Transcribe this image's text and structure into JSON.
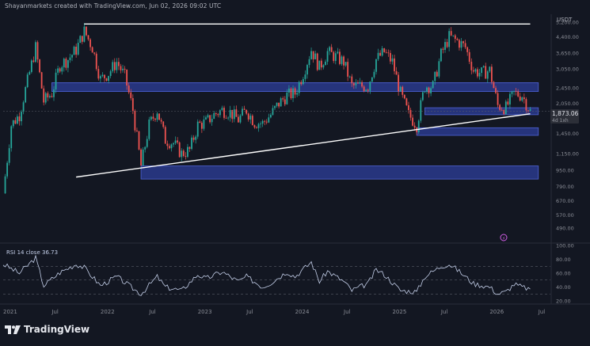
{
  "header": {
    "caption": "Shayanmarkets created with TradingView.com, Jun 02, 2026 09:02 UTC"
  },
  "brand": {
    "name": "TradingView",
    "icon": "tradingview-logo-icon"
  },
  "colors": {
    "background": "#131722",
    "bull": "#26a69a",
    "bear": "#ef5350",
    "zone_fill": "#2a3a8c",
    "zone_stroke": "#4f63d6",
    "trendline": "#ffffff",
    "rsi_line": "#c3cee8",
    "price_badge": "#2c2f38"
  },
  "chart_data": [
    {
      "type": "line",
      "subtype": "candlestick",
      "title": "",
      "xlabel": "",
      "ylabel": "",
      "currency_label": "USDT",
      "y_scale": "log",
      "ylim": [
        420,
        5500
      ],
      "xlim": [
        "2021-01",
        "2026-08"
      ],
      "y_ticks": [
        "5,200.00",
        "4,400.00",
        "3,650.00",
        "3,050.00",
        "2,450.00",
        "2,050.00",
        "1,750.00",
        "1,450.00",
        "1,150.00",
        "950.00",
        "790.00",
        "670.00",
        "570.00",
        "490.00"
      ],
      "y_tick_values": [
        5200,
        4400,
        3650,
        3050,
        2450,
        2050,
        1750,
        1450,
        1150,
        950,
        790,
        670,
        570,
        490
      ],
      "x_ticks": [
        "2021",
        "Jul",
        "2022",
        "Jul",
        "2023",
        "Jul",
        "2024",
        "Jul",
        "2025",
        "Jul",
        "2026",
        "Jul"
      ],
      "x_tick_dates": [
        "2021-01",
        "2021-07",
        "2022-01",
        "2022-07",
        "2023-01",
        "2023-07",
        "2024-01",
        "2024-07",
        "2025-01",
        "2025-07",
        "2026-01",
        "2026-07"
      ],
      "current_price": {
        "label": "1,873.06",
        "value": 1873.06,
        "sub_label": "4d 1xh"
      },
      "series": [
        {
          "approx_price_path": [
            [
              "2021-01",
              730
            ],
            [
              "2021-02",
              1600
            ],
            [
              "2021-03",
              1800
            ],
            [
              "2021-05",
              3900
            ],
            [
              "2021-06",
              2100
            ],
            [
              "2021-07",
              2300
            ],
            [
              "2021-08",
              3200
            ],
            [
              "2021-09",
              3400
            ],
            [
              "2021-10",
              3800
            ],
            [
              "2021-11",
              4700
            ],
            [
              "2021-12",
              3900
            ],
            [
              "2022-01",
              2700
            ],
            [
              "2022-02",
              2900
            ],
            [
              "2022-03",
              3300
            ],
            [
              "2022-04",
              2800
            ],
            [
              "2022-05",
              1900
            ],
            [
              "2022-06",
              1000
            ],
            [
              "2022-07",
              1600
            ],
            [
              "2022-08",
              1900
            ],
            [
              "2022-09",
              1350
            ],
            [
              "2022-10",
              1300
            ],
            [
              "2022-11",
              1150
            ],
            [
              "2022-12",
              1200
            ],
            [
              "2023-01",
              1600
            ],
            [
              "2023-02",
              1650
            ],
            [
              "2023-03",
              1800
            ],
            [
              "2023-04",
              1900
            ],
            [
              "2023-05",
              1850
            ],
            [
              "2023-06",
              1700
            ],
            [
              "2023-07",
              1900
            ],
            [
              "2023-08",
              1650
            ],
            [
              "2023-09",
              1630
            ],
            [
              "2023-10",
              1800
            ],
            [
              "2023-11",
              2050
            ],
            [
              "2023-12",
              2250
            ],
            [
              "2024-01",
              2300
            ],
            [
              "2024-02",
              2900
            ],
            [
              "2024-03",
              3800
            ],
            [
              "2024-04",
              3100
            ],
            [
              "2024-05",
              3700
            ],
            [
              "2024-06",
              3500
            ],
            [
              "2024-07",
              3300
            ],
            [
              "2024-08",
              2500
            ],
            [
              "2024-09",
              2500
            ],
            [
              "2024-10",
              2500
            ],
            [
              "2024-11",
              3400
            ],
            [
              "2024-12",
              3700
            ],
            [
              "2025-01",
              3300
            ],
            [
              "2025-02",
              2300
            ],
            [
              "2025-03",
              1800
            ],
            [
              "2025-04",
              1600
            ],
            [
              "2025-05",
              2500
            ],
            [
              "2025-06",
              2500
            ],
            [
              "2025-07",
              3600
            ],
            [
              "2025-08",
              4400
            ],
            [
              "2025-09",
              4200
            ],
            [
              "2025-10",
              3900
            ],
            [
              "2025-11",
              3000
            ],
            [
              "2025-12",
              2900
            ],
            [
              "2026-01",
              3000
            ],
            [
              "2026-02",
              2000
            ],
            [
              "2026-03",
              1950
            ],
            [
              "2026-04",
              2300
            ],
            [
              "2026-05",
              2250
            ],
            [
              "2026-06",
              1873
            ]
          ]
        }
      ],
      "annotations": {
        "resistance_line": {
          "from": [
            "2021-11",
            5100
          ],
          "to": [
            "2026-06",
            5100
          ]
        },
        "ascending_trendline": {
          "from": [
            "2021-10",
            880
          ],
          "to": [
            "2026-06",
            1820
          ]
        },
        "supply_demand_zones": [
          {
            "from": "2021-07",
            "to": "2026-07",
            "low": 2350,
            "high": 2600
          },
          {
            "from": "2025-05",
            "to": "2026-07",
            "low": 1800,
            "high": 1950
          },
          {
            "from": "2025-04",
            "to": "2026-07",
            "low": 1420,
            "high": 1550
          },
          {
            "from": "2022-06",
            "to": "2026-07",
            "low": 860,
            "high": 1000
          }
        ]
      }
    },
    {
      "type": "line",
      "title": "RSI 14 close 36.73",
      "ylim": [
        20,
        100
      ],
      "y_ticks": [
        "100.00",
        "80.00",
        "60.00",
        "40.00",
        "20.00"
      ],
      "y_tick_values": [
        100,
        80,
        60,
        40,
        20
      ],
      "reference_lines": [
        70,
        50,
        30
      ],
      "series": [
        {
          "values": [
            [
              "2021-01",
              73
            ],
            [
              "2021-03",
              60
            ],
            [
              "2021-05",
              82
            ],
            [
              "2021-06",
              42
            ],
            [
              "2021-08",
              61
            ],
            [
              "2021-10",
              73
            ],
            [
              "2021-11",
              68
            ],
            [
              "2022-01",
              42
            ],
            [
              "2022-03",
              55
            ],
            [
              "2022-05",
              38
            ],
            [
              "2022-06",
              30
            ],
            [
              "2022-08",
              55
            ],
            [
              "2022-09",
              40
            ],
            [
              "2022-11",
              35
            ],
            [
              "2023-01",
              58
            ],
            [
              "2023-02",
              52
            ],
            [
              "2023-04",
              62
            ],
            [
              "2023-06",
              48
            ],
            [
              "2023-07",
              55
            ],
            [
              "2023-09",
              40
            ],
            [
              "2023-10",
              46
            ],
            [
              "2023-12",
              62
            ],
            [
              "2024-01",
              55
            ],
            [
              "2024-03",
              76
            ],
            [
              "2024-04",
              48
            ],
            [
              "2024-05",
              63
            ],
            [
              "2024-07",
              48
            ],
            [
              "2024-08",
              35
            ],
            [
              "2024-10",
              45
            ],
            [
              "2024-11",
              65
            ],
            [
              "2024-12",
              58
            ],
            [
              "2025-02",
              35
            ],
            [
              "2025-04",
              33
            ],
            [
              "2025-05",
              55
            ],
            [
              "2025-07",
              70
            ],
            [
              "2025-08",
              73
            ],
            [
              "2025-09",
              65
            ],
            [
              "2025-11",
              45
            ],
            [
              "2026-01",
              40
            ],
            [
              "2026-02",
              30
            ],
            [
              "2026-03",
              33
            ],
            [
              "2026-04",
              44
            ],
            [
              "2026-05",
              40
            ],
            [
              "2026-06",
              37
            ]
          ]
        }
      ]
    }
  ]
}
